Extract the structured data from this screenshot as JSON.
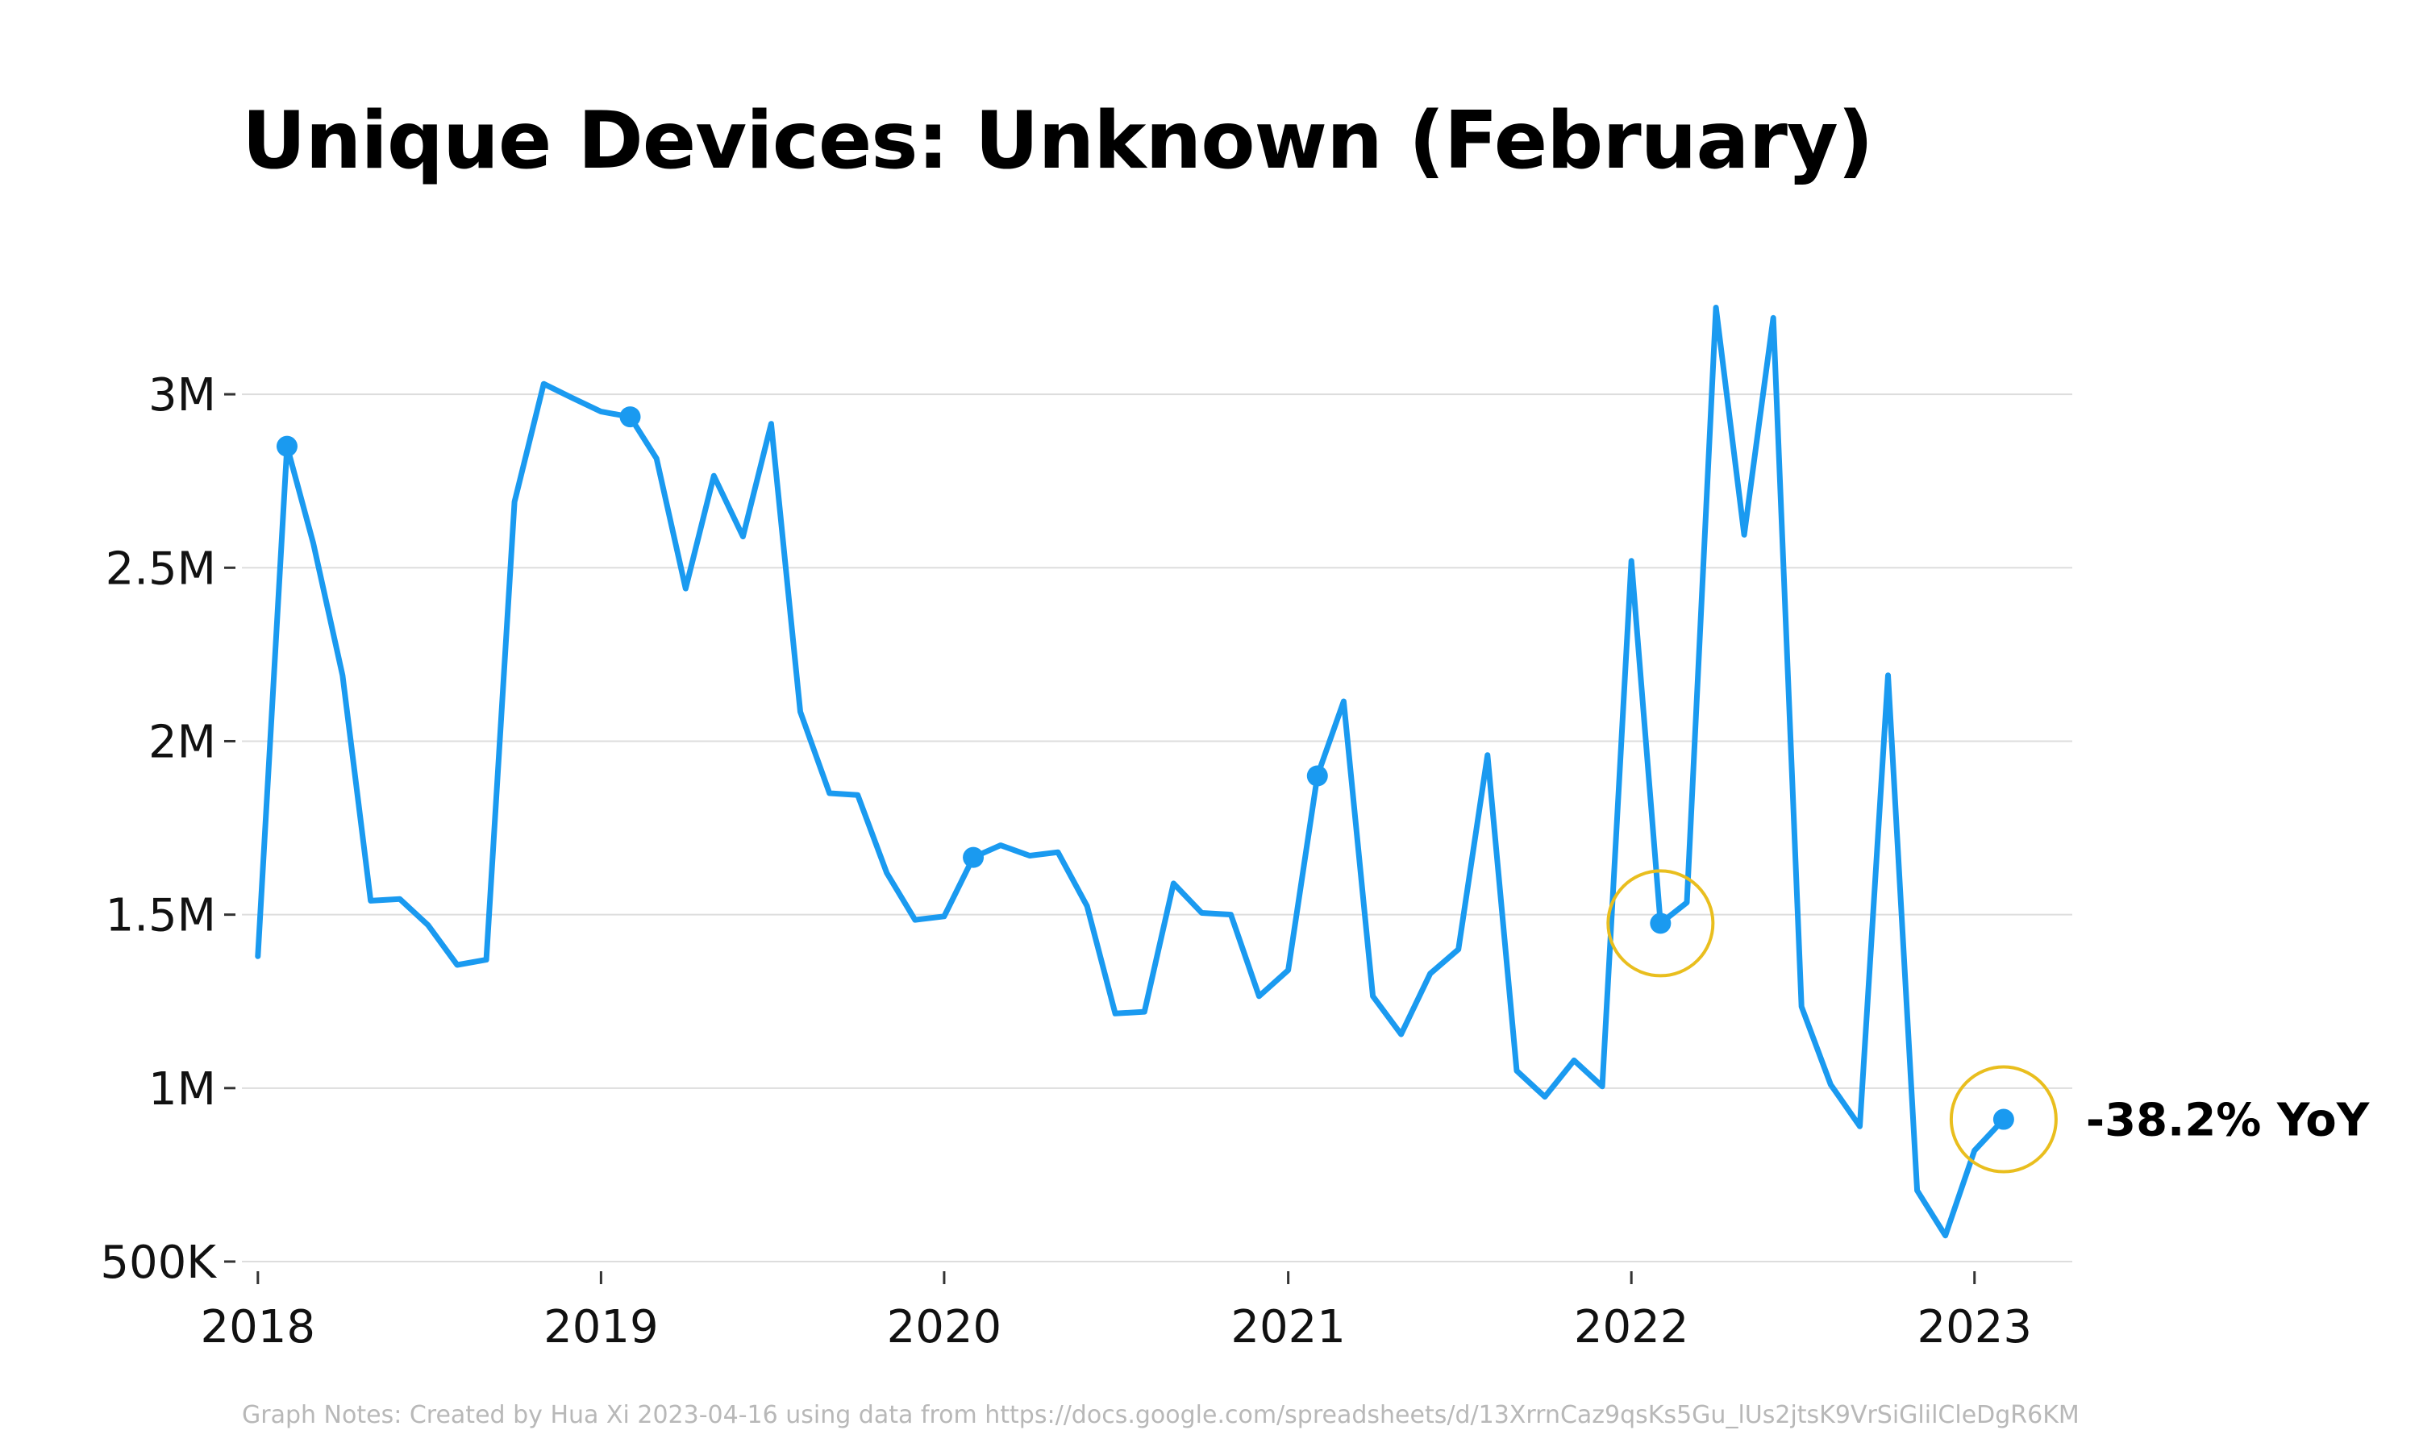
{
  "chart_data": {
    "type": "line",
    "title": "Unique Devices: Unknown (February)",
    "xlabel": "",
    "ylabel": "",
    "x_range": [
      "2017-12-15",
      "2023-04-15"
    ],
    "ylim": [
      500000,
      3300000
    ],
    "grid": true,
    "y_ticks": [
      {
        "value": 500000,
        "label": "500K"
      },
      {
        "value": 1000000,
        "label": "1M"
      },
      {
        "value": 1500000,
        "label": "1.5M"
      },
      {
        "value": 2000000,
        "label": "2M"
      },
      {
        "value": 2500000,
        "label": "2.5M"
      },
      {
        "value": 3000000,
        "label": "3M"
      }
    ],
    "x_ticks": [
      {
        "value": "2018-01-01",
        "label": "2018"
      },
      {
        "value": "2019-01-01",
        "label": "2019"
      },
      {
        "value": "2020-01-01",
        "label": "2020"
      },
      {
        "value": "2021-01-01",
        "label": "2021"
      },
      {
        "value": "2022-01-01",
        "label": "2022"
      },
      {
        "value": "2023-01-01",
        "label": "2023"
      }
    ],
    "series": [
      {
        "color": "#1a9af0",
        "x": [
          "2018-01",
          "2018-02",
          "2018-03",
          "2018-04",
          "2018-05",
          "2018-06",
          "2018-07",
          "2018-08",
          "2018-09",
          "2018-10",
          "2018-11",
          "2018-12",
          "2019-01",
          "2019-02",
          "2019-03",
          "2019-04",
          "2019-05",
          "2019-06",
          "2019-07",
          "2019-08",
          "2019-09",
          "2019-10",
          "2019-11",
          "2019-12",
          "2020-01",
          "2020-02",
          "2020-03",
          "2020-04",
          "2020-05",
          "2020-06",
          "2020-07",
          "2020-08",
          "2020-09",
          "2020-10",
          "2020-11",
          "2020-12",
          "2021-01",
          "2021-02",
          "2021-03",
          "2021-04",
          "2021-05",
          "2021-06",
          "2021-07",
          "2021-08",
          "2021-09",
          "2021-10",
          "2021-11",
          "2021-12",
          "2022-01",
          "2022-02",
          "2022-03",
          "2022-04",
          "2022-05",
          "2022-06",
          "2022-07",
          "2022-08",
          "2022-09",
          "2022-10",
          "2022-11",
          "2022-12",
          "2023-01",
          "2023-02"
        ],
        "values": [
          1380000,
          2850000,
          2570000,
          2190000,
          1540000,
          1545000,
          1470000,
          1355000,
          1370000,
          2690000,
          3030000,
          2990000,
          2950000,
          2935000,
          2815000,
          2440000,
          2765000,
          2590000,
          2915000,
          2085000,
          1850000,
          1845000,
          1620000,
          1485000,
          1495000,
          1665000,
          1700000,
          1670000,
          1680000,
          1525000,
          1215000,
          1220000,
          1590000,
          1505000,
          1500000,
          1265000,
          1340000,
          1900000,
          2115000,
          1265000,
          1155000,
          1330000,
          1400000,
          1960000,
          1050000,
          975000,
          1080000,
          1005000,
          2520000,
          1475000,
          1535000,
          3250000,
          2595000,
          3220000,
          1235000,
          1010000,
          890000,
          2190000,
          705000,
          575000,
          820000,
          910000
        ]
      }
    ],
    "feb_markers": [
      "2018-02",
      "2019-02",
      "2020-02",
      "2021-02",
      "2022-02",
      "2023-02"
    ],
    "highlighted": [
      "2022-02",
      "2023-02"
    ],
    "annotation": {
      "x": "2023-02",
      "text": "-38.2% YoY"
    },
    "colors": {
      "line": "#1a9af0",
      "marker": "#1a9af0",
      "highlight": "#e9be1e",
      "grid": "#dddddd"
    }
  },
  "footer": "Graph Notes: Created by Hua Xi 2023-04-16 using data from https://docs.google.com/spreadsheets/d/13XrrnCaz9qsKs5Gu_lUs2jtsK9VrSiGlilCleDgR6KM"
}
